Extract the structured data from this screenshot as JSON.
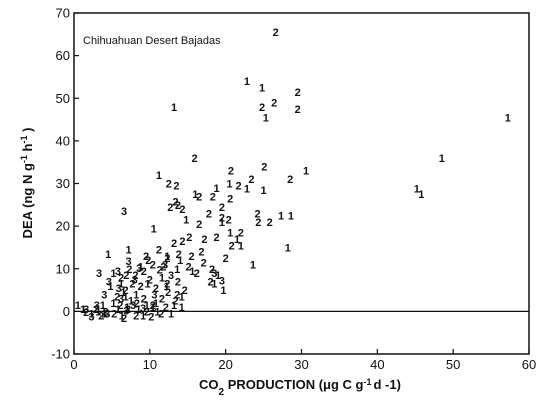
{
  "chart_data": {
    "type": "scatter",
    "title": "",
    "annotation": "Chihuahuan Desert Bajadas",
    "xlabel": {
      "before_sub": "CO",
      "subscript": "2",
      "after_sub": " PRODUCTION (μg C g",
      "superscript": "-1",
      "tail": "d -1)"
    },
    "ylabel": {
      "before_sup": "DEA (ng N g",
      "superscript_1": "-1",
      "middle": " h",
      "superscript_2": "-1",
      "tail": " )"
    },
    "xlim": [
      0,
      60
    ],
    "ylim": [
      -10,
      70
    ],
    "xticks": [
      0,
      10,
      20,
      30,
      40,
      50,
      60
    ],
    "yticks": [
      -10,
      0,
      10,
      20,
      30,
      40,
      50,
      60,
      70
    ],
    "reference_lines": [
      {
        "axis": "y",
        "value": 0
      }
    ],
    "grid": false,
    "legend": "none",
    "series": [
      {
        "marker": "1",
        "points": [
          [
            22.8,
            54
          ],
          [
            24.8,
            52.5
          ],
          [
            13.2,
            48
          ],
          [
            25.3,
            45.5
          ],
          [
            57.2,
            45.5
          ],
          [
            48.5,
            36
          ],
          [
            30.6,
            33
          ],
          [
            11.2,
            32
          ],
          [
            20.5,
            30
          ],
          [
            18.8,
            29
          ],
          [
            22.8,
            28.8
          ],
          [
            25,
            28.5
          ],
          [
            45.2,
            28.8
          ],
          [
            45.8,
            27.5
          ],
          [
            16,
            27.5
          ],
          [
            27.3,
            22.5
          ],
          [
            28.6,
            22.5
          ],
          [
            14.8,
            21.5
          ],
          [
            19.5,
            21
          ],
          [
            10.5,
            19.5
          ],
          [
            20.6,
            18.5
          ],
          [
            21.5,
            17
          ],
          [
            22,
            15.5
          ],
          [
            28.2,
            15
          ],
          [
            7.2,
            14.5
          ],
          [
            4.5,
            13.5
          ],
          [
            12.3,
            13
          ],
          [
            14,
            12
          ],
          [
            23.6,
            11
          ],
          [
            8.8,
            10.5
          ],
          [
            13.6,
            10
          ],
          [
            15.6,
            9.5
          ],
          [
            19,
            8.5
          ],
          [
            5.2,
            9
          ],
          [
            18.5,
            6.5
          ],
          [
            19.7,
            5
          ],
          [
            6.5,
            4.5
          ],
          [
            8.2,
            4
          ],
          [
            14.2,
            3.5
          ],
          [
            7.5,
            2.5
          ],
          [
            10.8,
            2
          ],
          [
            13.2,
            1.5
          ],
          [
            14.2,
            1
          ],
          [
            9.6,
            1.5
          ],
          [
            0.5,
            1.5
          ],
          [
            1.2,
            0.5
          ],
          [
            3.2,
            0
          ],
          [
            4,
            -0.5
          ],
          [
            5.8,
            0.5
          ],
          [
            7,
            1
          ],
          [
            8.5,
            0.5
          ],
          [
            11,
            0
          ],
          [
            12.8,
            -0.5
          ],
          [
            2.3,
            -0.5
          ],
          [
            6.3,
            -1
          ],
          [
            9.1,
            -1
          ],
          [
            10.4,
            1
          ],
          [
            5.2,
            2
          ],
          [
            6.8,
            3.5
          ],
          [
            3.8,
            1.5
          ],
          [
            12.2,
            6
          ],
          [
            11.6,
            8
          ],
          [
            9.7,
            6.5
          ],
          [
            4.8,
            6
          ],
          [
            6.2,
            6.5
          ]
        ]
      },
      {
        "marker": "2",
        "points": [
          [
            26.6,
            65.5
          ],
          [
            29.5,
            51.5
          ],
          [
            26.4,
            49
          ],
          [
            29.5,
            47.5
          ],
          [
            24.8,
            48
          ],
          [
            15.9,
            36
          ],
          [
            20.7,
            33
          ],
          [
            25.1,
            34
          ],
          [
            12.5,
            30
          ],
          [
            13.5,
            29.5
          ],
          [
            23.4,
            31
          ],
          [
            21.7,
            29.5
          ],
          [
            28.5,
            31
          ],
          [
            18.3,
            27
          ],
          [
            20.6,
            26.5
          ],
          [
            13.4,
            25.8
          ],
          [
            16.5,
            27
          ],
          [
            12.7,
            24.5
          ],
          [
            13.7,
            25
          ],
          [
            14.3,
            24
          ],
          [
            19.5,
            24.5
          ],
          [
            17.8,
            23
          ],
          [
            24.2,
            23
          ],
          [
            19.5,
            22
          ],
          [
            20.4,
            21.5
          ],
          [
            25.8,
            21
          ],
          [
            24.3,
            21
          ],
          [
            16.5,
            20.5
          ],
          [
            22,
            18.5
          ],
          [
            15.2,
            17.5
          ],
          [
            17.2,
            17
          ],
          [
            18.8,
            17.5
          ],
          [
            13.2,
            16
          ],
          [
            14.3,
            16.5
          ],
          [
            20.8,
            15.5
          ],
          [
            16.8,
            14
          ],
          [
            11.2,
            14.5
          ],
          [
            13.8,
            13.5
          ],
          [
            9.5,
            13
          ],
          [
            12.3,
            12.5
          ],
          [
            17.1,
            11.5
          ],
          [
            15.1,
            10.5
          ],
          [
            10.4,
            11
          ],
          [
            7.3,
            10
          ],
          [
            9.2,
            9.5
          ],
          [
            11.3,
            9.8
          ],
          [
            18.2,
            10
          ],
          [
            6.2,
            8
          ],
          [
            8.1,
            8.5
          ],
          [
            10,
            7.5
          ],
          [
            12.3,
            6.5
          ],
          [
            13.7,
            7
          ],
          [
            16.2,
            9
          ],
          [
            18,
            7
          ],
          [
            8.8,
            6
          ],
          [
            10.8,
            5.5
          ],
          [
            6.8,
            5
          ],
          [
            14.6,
            5
          ],
          [
            12.4,
            4.5
          ],
          [
            5.7,
            3.5
          ],
          [
            9.2,
            3
          ],
          [
            11.6,
            3
          ],
          [
            13.4,
            2.5
          ],
          [
            6.1,
            1.5
          ],
          [
            8.3,
            2
          ],
          [
            10.4,
            1.5
          ],
          [
            12.1,
            1
          ],
          [
            4.2,
            0
          ],
          [
            7.1,
            0.5
          ],
          [
            9.6,
            0
          ],
          [
            11.5,
            -0.5
          ],
          [
            2.9,
            0.5
          ],
          [
            5.3,
            -0.5
          ],
          [
            8.2,
            -1
          ],
          [
            10.2,
            -1.2
          ],
          [
            3.6,
            -1
          ],
          [
            6.6,
            -1.5
          ],
          [
            1.6,
            -0.2
          ],
          [
            13.6,
            4
          ],
          [
            7.7,
            6.5
          ],
          [
            6.9,
            8.5
          ],
          [
            15.5,
            13
          ],
          [
            20,
            12.5
          ],
          [
            11.8,
            10.5
          ],
          [
            9.8,
            12
          ]
        ]
      },
      {
        "marker": "3",
        "points": [
          [
            6.6,
            23.5
          ],
          [
            3.3,
            9
          ],
          [
            5.8,
            9.5
          ],
          [
            18.5,
            9
          ],
          [
            19.5,
            7.2
          ],
          [
            4.6,
            7
          ],
          [
            12,
            11
          ],
          [
            8,
            7.5
          ],
          [
            4,
            4
          ],
          [
            6.2,
            3
          ],
          [
            7.8,
            1.5
          ],
          [
            3,
            1.5
          ],
          [
            1.6,
            0.5
          ],
          [
            4.4,
            -0.5
          ],
          [
            6.9,
            0.2
          ],
          [
            9.1,
            0.8
          ],
          [
            2.3,
            -1.2
          ],
          [
            5.9,
            5.5
          ],
          [
            10.6,
            4
          ],
          [
            12.8,
            8.5
          ],
          [
            8.6,
            10.2
          ],
          [
            7.2,
            11.8
          ]
        ]
      }
    ]
  }
}
